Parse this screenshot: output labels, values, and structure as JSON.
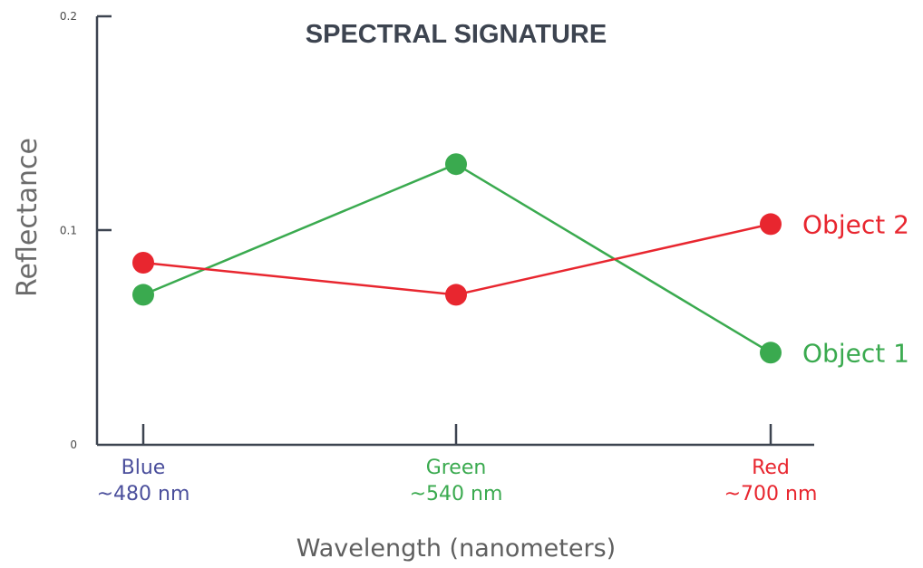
{
  "chart_data": {
    "type": "line",
    "title": "SPECTRAL SIGNATURE",
    "xlabel": "Wavelength (nanometers)",
    "ylabel": "Reflectance",
    "ylim": [
      0,
      0.2
    ],
    "yticks": [
      "0",
      "0.1",
      "0.2"
    ],
    "categories": [
      {
        "name": "Blue",
        "wavelength": "~480 nm",
        "color": "#4b4f9c"
      },
      {
        "name": "Green",
        "wavelength": "~540 nm",
        "color": "#3aaa4f"
      },
      {
        "name": "Red",
        "wavelength": "~700 nm",
        "color": "#e8262f"
      }
    ],
    "series": [
      {
        "name": "Object 1",
        "color": "#3aaa4f",
        "values": [
          0.07,
          0.131,
          0.043
        ]
      },
      {
        "name": "Object 2",
        "color": "#e8262f",
        "values": [
          0.085,
          0.07,
          0.103
        ]
      }
    ],
    "grid": false,
    "legend": "right-end-of-lines"
  }
}
